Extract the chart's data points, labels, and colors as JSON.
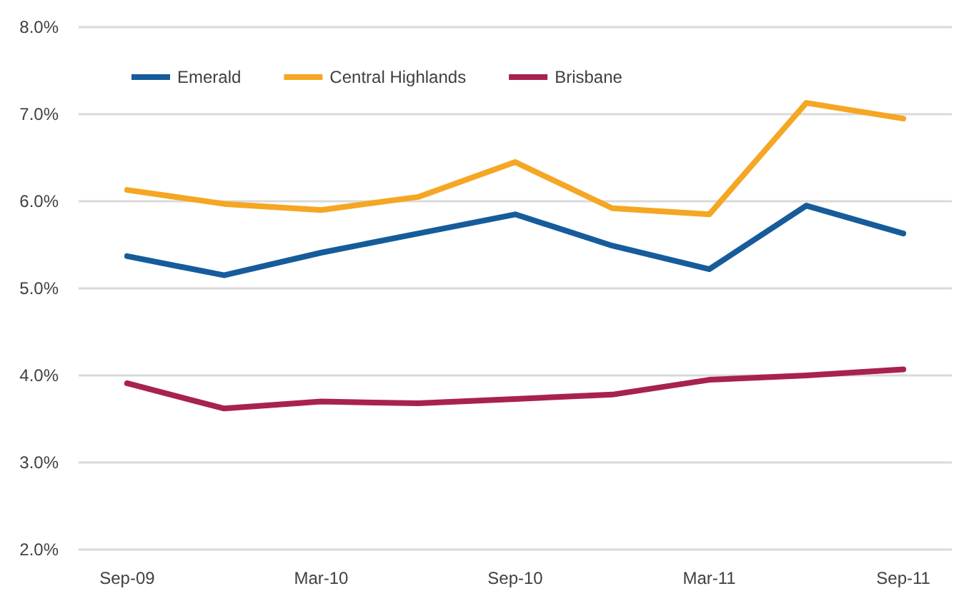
{
  "chart_data": {
    "type": "line",
    "categories": [
      "Sep-09",
      null,
      "Mar-10",
      null,
      "Sep-10",
      null,
      "Mar-11",
      null,
      "Sep-11"
    ],
    "series": [
      {
        "name": "Emerald",
        "color": "#165c9b",
        "values": [
          5.37,
          5.15,
          5.41,
          5.63,
          5.85,
          5.49,
          5.22,
          5.95,
          5.63
        ]
      },
      {
        "name": "Central Highlands",
        "color": "#f5a623",
        "values": [
          6.13,
          5.97,
          5.9,
          6.05,
          6.45,
          5.92,
          5.85,
          7.13,
          6.95
        ]
      },
      {
        "name": "Brisbane",
        "color": "#a8224e",
        "values": [
          3.91,
          3.62,
          3.7,
          3.68,
          3.73,
          3.78,
          3.95,
          4.0,
          4.07
        ]
      }
    ],
    "ylim": [
      2,
      8
    ],
    "yticks": [
      {
        "value": 2,
        "label": "2.0%"
      },
      {
        "value": 3,
        "label": "3.0%"
      },
      {
        "value": 4,
        "label": "4.0%"
      },
      {
        "value": 5,
        "label": "5.0%"
      },
      {
        "value": 6,
        "label": "6.0%"
      },
      {
        "value": 7,
        "label": "7.0%"
      },
      {
        "value": 8,
        "label": "8.0%"
      }
    ],
    "grid": "y",
    "legend": "top left",
    "marker": "none",
    "line_style": "solid"
  }
}
